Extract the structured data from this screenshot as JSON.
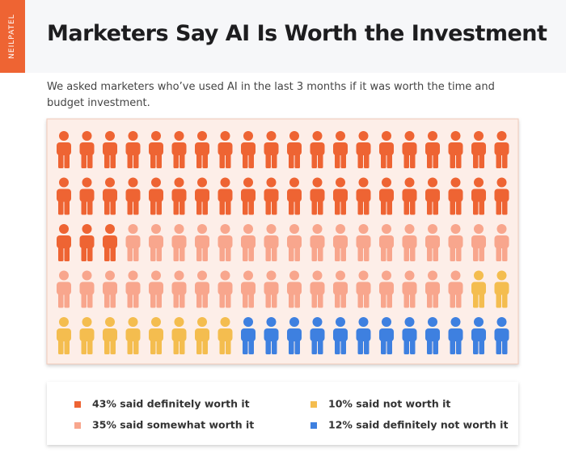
{
  "brand": "NEILPATEL",
  "chart_data": {
    "type": "pictogram",
    "title": "Marketers Say AI Is Worth the Investment",
    "subtitle": "We asked marketers who’ve used AI in the last 3 months if it was worth the time and budget investment.",
    "categories": [
      "43% said definitely worth it",
      "35% said somewhat worth it",
      "10% said not worth it",
      "12% said definitely not worth it"
    ],
    "values": [
      43,
      35,
      10,
      12
    ],
    "colors": [
      "#ee6433",
      "#f8a68d",
      "#f4bd4f",
      "#3e80e0"
    ]
  }
}
